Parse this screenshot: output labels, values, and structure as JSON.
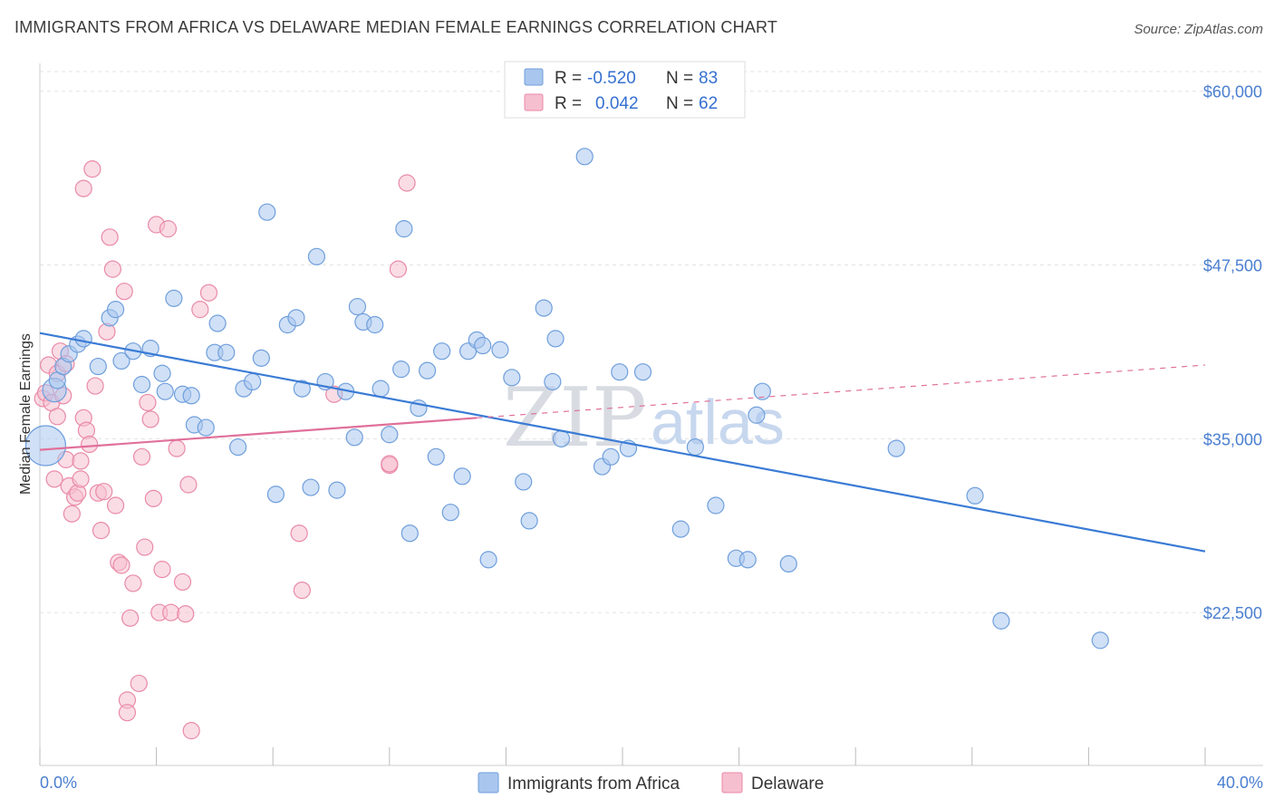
{
  "header": {
    "title": "IMMIGRANTS FROM AFRICA VS DELAWARE MEDIAN FEMALE EARNINGS CORRELATION CHART",
    "source": "Source: ZipAtlas.com"
  },
  "watermark": {
    "zip": "ZIP",
    "atlas": "atlas"
  },
  "legend": {
    "rows": [
      {
        "r_label": "R =",
        "r_value": "-0.520",
        "n_label": "N =",
        "n_value": "83"
      },
      {
        "r_label": "R =",
        "r_value": "0.042",
        "n_label": "N =",
        "n_value": "62"
      }
    ]
  },
  "bottom_legend": {
    "items": [
      {
        "label": "Immigrants from Africa"
      },
      {
        "label": "Delaware"
      }
    ]
  },
  "colors": {
    "blue_fill": "#a9c6ee",
    "blue_stroke": "#6f9fdc",
    "blue_line": "#3a7bd5",
    "pink_fill": "#f6bfd0",
    "pink_stroke": "#e98aa8",
    "pink_line": "#e0709a",
    "grid": "#e3e3e3",
    "tick": "#4a7fd0"
  },
  "chart_data": {
    "type": "scatter",
    "title": "IMMIGRANTS FROM AFRICA VS DELAWARE MEDIAN FEMALE EARNINGS CORRELATION CHART",
    "ylabel": "Median Female Earnings",
    "xlabel": "",
    "xlim": [
      0,
      40
    ],
    "ylim": [
      11500,
      62000
    ],
    "x_tick_labels": [
      "0.0%",
      "40.0%"
    ],
    "y_ticks": [
      22500,
      35000,
      47500,
      60000
    ],
    "y_tick_labels": [
      "$22,500",
      "$35,000",
      "$47,500",
      "$60,000"
    ],
    "grid": true,
    "legend_placement": "top-center",
    "series": [
      {
        "name": "Immigrants from Africa",
        "color": "#a9c6ee",
        "trend": {
          "x": [
            0,
            40
          ],
          "y": [
            42600,
            26900
          ],
          "style": "solid"
        },
        "points": [
          [
            0.2,
            34500
          ],
          [
            0.5,
            38500
          ],
          [
            0.6,
            39200
          ],
          [
            0.8,
            40200
          ],
          [
            1.0,
            41100
          ],
          [
            1.3,
            41800
          ],
          [
            1.5,
            42200
          ],
          [
            2.0,
            40200
          ],
          [
            2.4,
            43700
          ],
          [
            2.6,
            44300
          ],
          [
            2.8,
            40600
          ],
          [
            3.2,
            41300
          ],
          [
            3.5,
            38900
          ],
          [
            3.8,
            41500
          ],
          [
            4.2,
            39700
          ],
          [
            4.3,
            38400
          ],
          [
            4.6,
            45100
          ],
          [
            4.9,
            38200
          ],
          [
            5.2,
            38100
          ],
          [
            5.3,
            36000
          ],
          [
            5.7,
            35800
          ],
          [
            6.0,
            41200
          ],
          [
            6.1,
            43300
          ],
          [
            6.4,
            41200
          ],
          [
            6.8,
            34400
          ],
          [
            7.0,
            38600
          ],
          [
            7.3,
            39100
          ],
          [
            7.6,
            40800
          ],
          [
            7.8,
            51300
          ],
          [
            8.1,
            31000
          ],
          [
            8.5,
            43200
          ],
          [
            8.8,
            43700
          ],
          [
            9.0,
            38600
          ],
          [
            9.3,
            31500
          ],
          [
            9.5,
            48100
          ],
          [
            9.8,
            39100
          ],
          [
            10.2,
            31300
          ],
          [
            10.5,
            38400
          ],
          [
            10.8,
            35100
          ],
          [
            10.9,
            44500
          ],
          [
            11.1,
            43400
          ],
          [
            11.5,
            43200
          ],
          [
            11.7,
            38600
          ],
          [
            12.0,
            35300
          ],
          [
            12.4,
            40000
          ],
          [
            12.5,
            50100
          ],
          [
            12.7,
            28200
          ],
          [
            13.0,
            37200
          ],
          [
            13.3,
            39900
          ],
          [
            13.6,
            33700
          ],
          [
            13.8,
            41300
          ],
          [
            14.1,
            29700
          ],
          [
            14.5,
            32300
          ],
          [
            14.7,
            41300
          ],
          [
            15.0,
            42100
          ],
          [
            15.2,
            41700
          ],
          [
            15.4,
            26300
          ],
          [
            15.8,
            41400
          ],
          [
            16.2,
            39400
          ],
          [
            16.6,
            31900
          ],
          [
            16.8,
            29100
          ],
          [
            17.3,
            44400
          ],
          [
            17.6,
            39100
          ],
          [
            17.7,
            42200
          ],
          [
            17.9,
            35000
          ],
          [
            18.7,
            55300
          ],
          [
            19.3,
            33000
          ],
          [
            19.6,
            33700
          ],
          [
            19.9,
            39800
          ],
          [
            20.2,
            34300
          ],
          [
            20.7,
            39800
          ],
          [
            22.0,
            28500
          ],
          [
            22.5,
            34400
          ],
          [
            23.2,
            30200
          ],
          [
            23.9,
            26400
          ],
          [
            24.3,
            26300
          ],
          [
            24.6,
            36700
          ],
          [
            24.8,
            38400
          ],
          [
            25.7,
            26000
          ],
          [
            29.4,
            34300
          ],
          [
            32.1,
            30900
          ],
          [
            33.0,
            21900
          ],
          [
            36.4,
            20500
          ]
        ]
      },
      {
        "name": "Delaware",
        "color": "#f6bfd0",
        "trend": {
          "x": [
            0,
            15
          ],
          "y": [
            34200,
            36500
          ],
          "style": "solid",
          "extended_x": [
            15,
            40
          ],
          "extended_y": [
            36500,
            40300
          ]
        },
        "points": [
          [
            0.1,
            37900
          ],
          [
            0.2,
            38300
          ],
          [
            0.3,
            40300
          ],
          [
            0.4,
            37600
          ],
          [
            0.5,
            32100
          ],
          [
            0.6,
            39700
          ],
          [
            0.6,
            36600
          ],
          [
            0.7,
            41300
          ],
          [
            0.8,
            38100
          ],
          [
            0.9,
            33500
          ],
          [
            0.9,
            40400
          ],
          [
            1.0,
            31600
          ],
          [
            1.1,
            29600
          ],
          [
            1.2,
            30800
          ],
          [
            1.3,
            31100
          ],
          [
            1.4,
            33400
          ],
          [
            1.4,
            32100
          ],
          [
            1.5,
            36500
          ],
          [
            1.5,
            53000
          ],
          [
            1.6,
            35600
          ],
          [
            1.7,
            34600
          ],
          [
            1.8,
            54400
          ],
          [
            1.9,
            38800
          ],
          [
            2.0,
            31100
          ],
          [
            2.1,
            28400
          ],
          [
            2.2,
            31200
          ],
          [
            2.3,
            42700
          ],
          [
            2.4,
            49500
          ],
          [
            2.5,
            47200
          ],
          [
            2.6,
            30200
          ],
          [
            2.7,
            26100
          ],
          [
            2.8,
            25900
          ],
          [
            2.9,
            45600
          ],
          [
            3.0,
            16200
          ],
          [
            3.0,
            15300
          ],
          [
            3.1,
            22100
          ],
          [
            3.2,
            24600
          ],
          [
            3.4,
            17400
          ],
          [
            3.5,
            33700
          ],
          [
            3.6,
            27200
          ],
          [
            3.7,
            37600
          ],
          [
            3.8,
            36400
          ],
          [
            3.9,
            30700
          ],
          [
            4.0,
            50400
          ],
          [
            4.1,
            22500
          ],
          [
            4.2,
            25600
          ],
          [
            4.4,
            50100
          ],
          [
            4.5,
            22500
          ],
          [
            4.7,
            34300
          ],
          [
            4.9,
            24700
          ],
          [
            5.0,
            22400
          ],
          [
            5.1,
            31700
          ],
          [
            5.2,
            14000
          ],
          [
            5.5,
            44300
          ],
          [
            5.8,
            45500
          ],
          [
            8.9,
            28200
          ],
          [
            9.0,
            24100
          ],
          [
            10.1,
            38200
          ],
          [
            12.0,
            33100
          ],
          [
            12.3,
            47200
          ],
          [
            12.6,
            53400
          ],
          [
            12.0,
            33200
          ]
        ]
      }
    ]
  }
}
